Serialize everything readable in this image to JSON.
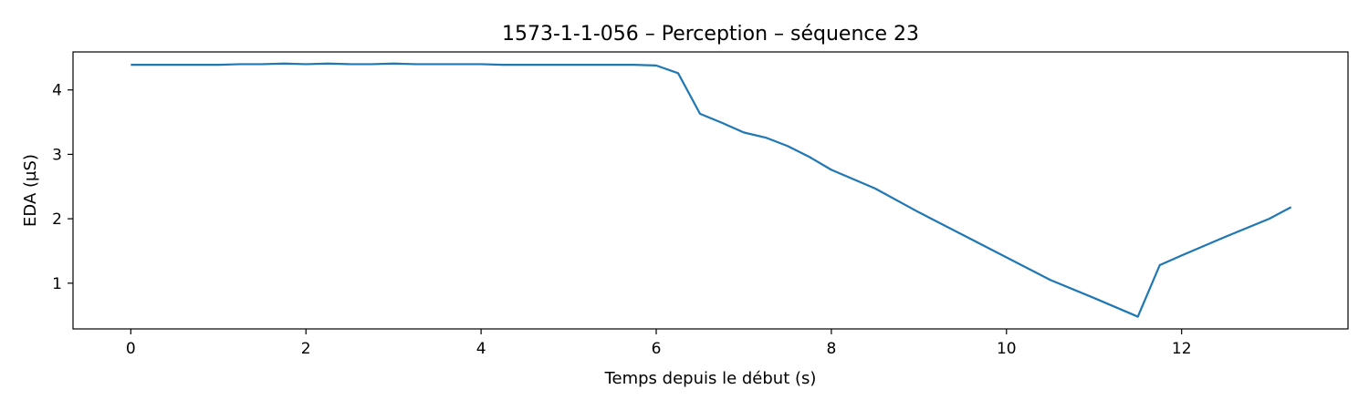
{
  "chart_data": {
    "type": "line",
    "title": "1573-1-1-056 – Perception – séquence 23",
    "xlabel": "Temps depuis le début (s)",
    "ylabel": "EDA (µS)",
    "xlim": [
      -0.66,
      13.9
    ],
    "ylim": [
      0.29,
      4.59
    ],
    "xticks": [
      0,
      2,
      4,
      6,
      8,
      10,
      12
    ],
    "yticks": [
      1,
      2,
      3,
      4
    ],
    "grid": false,
    "series": [
      {
        "color": "#1f77b4",
        "x": [
          0,
          0.25,
          0.5,
          0.75,
          1.0,
          1.25,
          1.5,
          1.75,
          2.0,
          2.25,
          2.5,
          2.75,
          3.0,
          3.25,
          3.5,
          3.75,
          4.0,
          4.25,
          4.5,
          4.75,
          5.0,
          5.25,
          5.5,
          5.75,
          6.0,
          6.25,
          6.5,
          6.75,
          7.0,
          7.25,
          7.5,
          7.75,
          8.0,
          8.5,
          9.0,
          9.5,
          10.0,
          10.5,
          11.0,
          11.5,
          11.75,
          12.0,
          12.5,
          13.0,
          13.25
        ],
        "y": [
          4.39,
          4.39,
          4.39,
          4.39,
          4.39,
          4.4,
          4.4,
          4.41,
          4.4,
          4.41,
          4.4,
          4.4,
          4.41,
          4.4,
          4.4,
          4.4,
          4.4,
          4.39,
          4.39,
          4.39,
          4.39,
          4.39,
          4.39,
          4.39,
          4.38,
          4.26,
          3.63,
          3.49,
          3.34,
          3.26,
          3.13,
          2.96,
          2.76,
          2.47,
          2.1,
          1.75,
          1.4,
          1.05,
          0.77,
          0.48,
          1.28,
          1.43,
          1.72,
          2.0,
          2.18
        ]
      }
    ]
  }
}
